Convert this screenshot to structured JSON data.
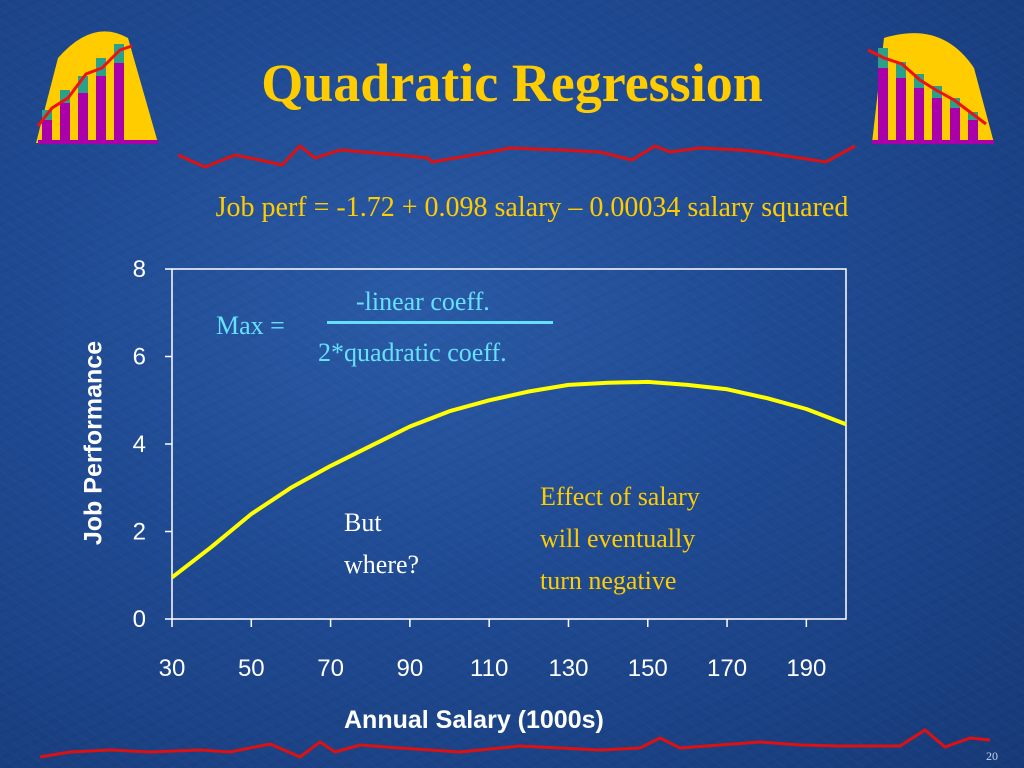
{
  "slide": {
    "title": "Quadratic Regression",
    "equation": "Job perf = -1.72 + 0.098 salary – 0.00034 salary squared",
    "formula": {
      "label": "Max =",
      "numerator": "-linear coeff.",
      "denominator": "2*quadratic coeff."
    },
    "question": [
      "But",
      "where?"
    ],
    "note": [
      "Effect of salary",
      "will eventually",
      "turn negative"
    ],
    "slide_number": "20",
    "colors": {
      "background": "#1f4a92",
      "title": "#ffcc00",
      "curve": "#ffff00",
      "formula": "#66e0ff",
      "accent_line": "#dd1111"
    },
    "decoration_icons": [
      "bar-chart-icon",
      "bar-chart-icon"
    ]
  },
  "chart_data": {
    "type": "line",
    "xlabel": "Annual Salary (1000s)",
    "ylabel": "Job Performance",
    "xlim": [
      30,
      200
    ],
    "ylim": [
      0,
      8
    ],
    "x_ticks": [
      30,
      50,
      70,
      90,
      110,
      130,
      150,
      170,
      190
    ],
    "y_ticks": [
      0,
      2,
      4,
      6,
      8
    ],
    "grid": false,
    "series": [
      {
        "x": [
          30,
          40,
          50,
          60,
          70,
          80,
          90,
          100,
          110,
          120,
          130,
          140,
          150,
          160,
          170,
          180,
          190,
          200
        ],
        "y": [
          0.95,
          1.65,
          2.4,
          3.0,
          3.5,
          3.95,
          4.4,
          4.75,
          5.0,
          5.2,
          5.35,
          5.4,
          5.42,
          5.35,
          5.25,
          5.05,
          4.8,
          4.45
        ]
      }
    ]
  }
}
